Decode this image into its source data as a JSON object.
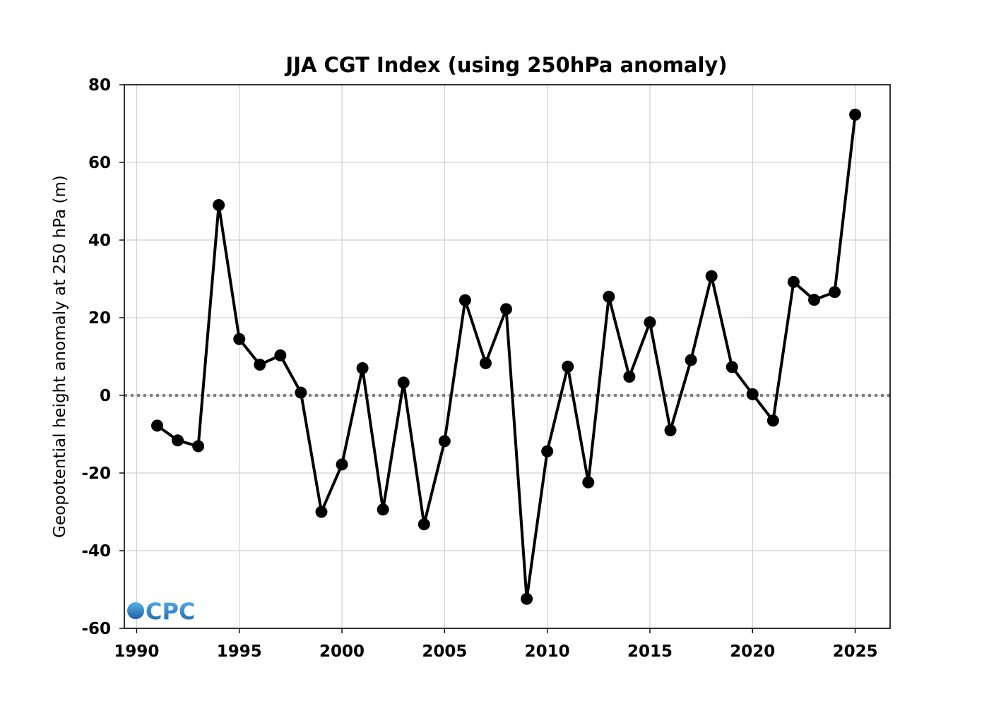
{
  "chart_data": {
    "type": "line",
    "title": "JJA CGT Index (using 250hPa anomaly)",
    "xlabel": "",
    "ylabel": "Geopotential height anomaly at 250 hPa (m)",
    "xlim": [
      1989.4,
      2026.7
    ],
    "ylim": [
      -60,
      80
    ],
    "xticks": [
      1990,
      1995,
      2000,
      2005,
      2010,
      2015,
      2020,
      2025
    ],
    "yticks": [
      -60,
      -40,
      -20,
      0,
      20,
      40,
      60,
      80
    ],
    "grid": true,
    "zero_line": {
      "value": 0,
      "style": "dotted",
      "color": "#808080"
    },
    "series": [
      {
        "color": "#000000",
        "marker": "circle",
        "x": [
          1991,
          1992,
          1993,
          1994,
          1995,
          1996,
          1997,
          1998,
          1999,
          2000,
          2001,
          2002,
          2003,
          2004,
          2005,
          2006,
          2007,
          2008,
          2009,
          2010,
          2011,
          2012,
          2013,
          2014,
          2015,
          2016,
          2017,
          2018,
          2019,
          2020,
          2021,
          2022,
          2023,
          2024,
          2025
        ],
        "y": [
          -7.8,
          -11.6,
          -13.1,
          49.0,
          14.5,
          7.9,
          10.3,
          0.7,
          -30.0,
          -17.8,
          7.0,
          -29.4,
          3.3,
          -33.2,
          -11.8,
          24.5,
          8.3,
          22.2,
          -52.4,
          -14.4,
          7.4,
          -22.4,
          25.4,
          4.8,
          18.8,
          -9.0,
          9.1,
          30.7,
          7.3,
          0.3,
          -6.5,
          29.2,
          24.6,
          26.6,
          72.3
        ]
      }
    ]
  },
  "watermark": {
    "text": "CPC",
    "colors": [
      "#56b4e9",
      "#1f5fa8"
    ]
  }
}
